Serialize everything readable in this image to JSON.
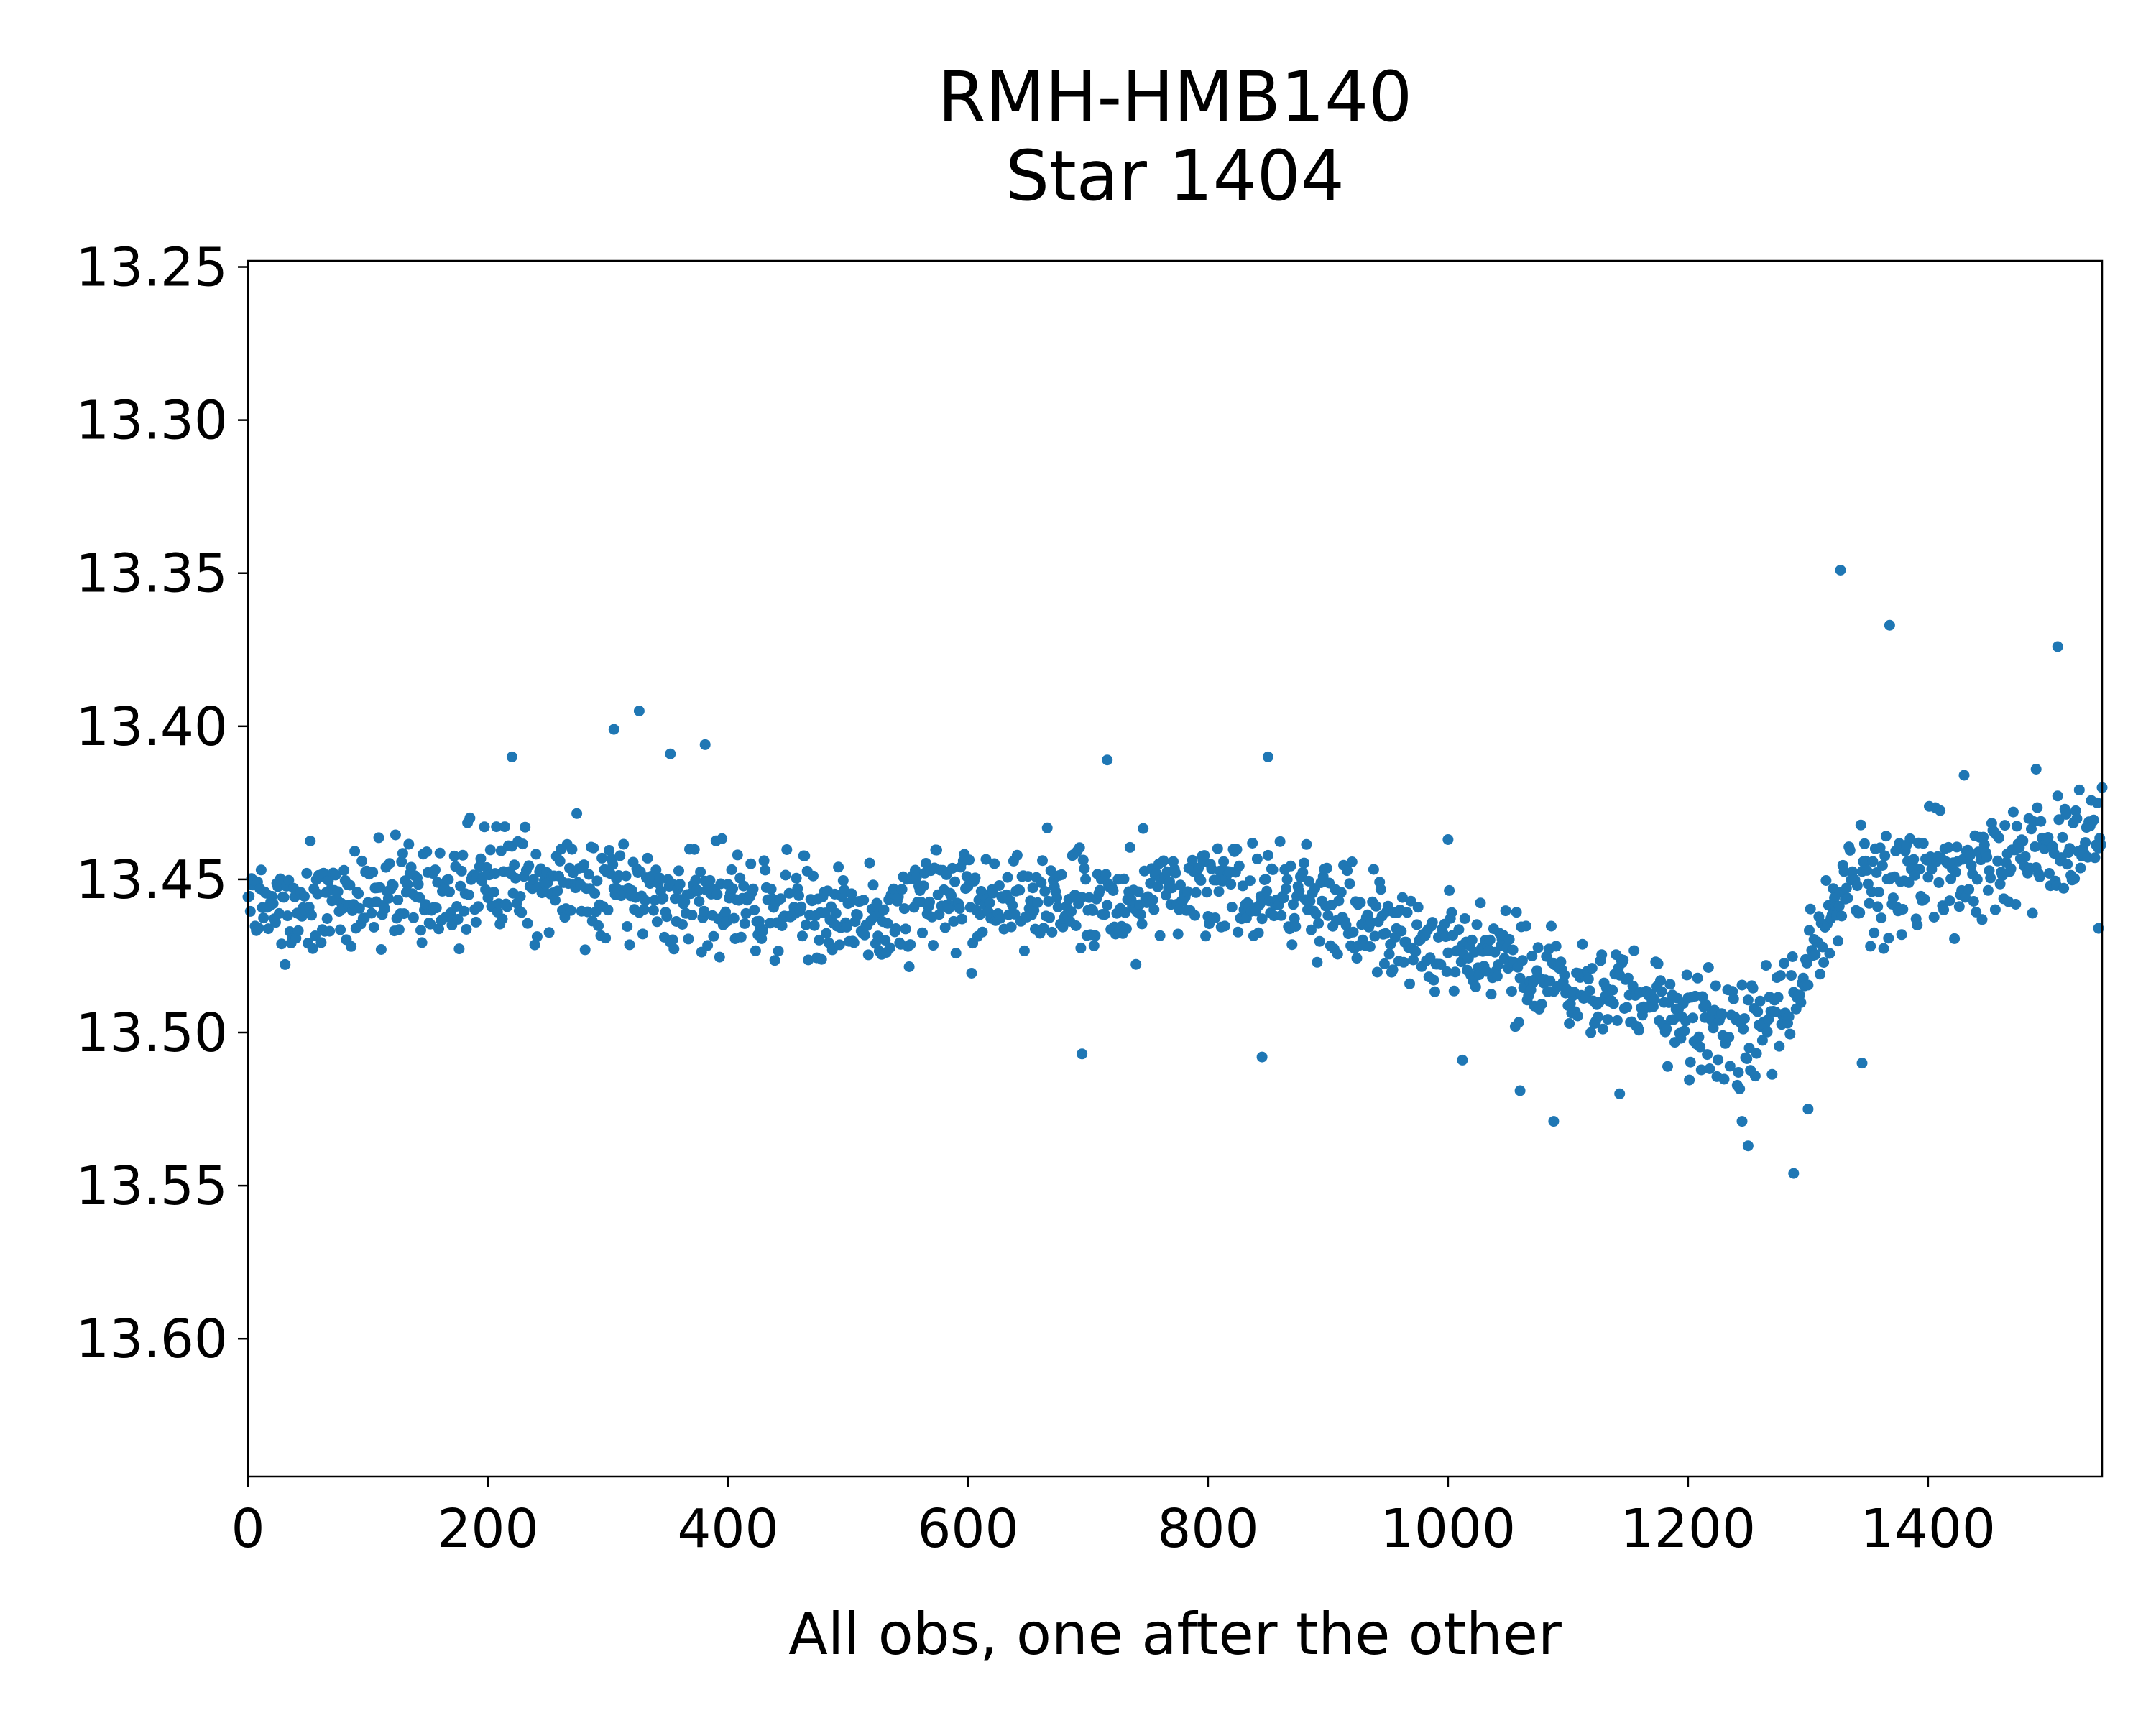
{
  "page": {
    "title_line1": "RMH-HMB140",
    "title_line2": "Star 1404"
  },
  "chart_data": {
    "type": "scatter",
    "title": "RMH-HMB140\nStar 1404",
    "xlabel": "All obs, one after the other",
    "ylabel": "",
    "xlim": [
      0,
      1545
    ],
    "ylim": [
      13.645,
      13.248
    ],
    "y_inverted": true,
    "x_ticks": [
      0,
      200,
      400,
      600,
      800,
      1000,
      1200,
      1400
    ],
    "x_tick_labels": [
      "0",
      "200",
      "400",
      "600",
      "800",
      "1000",
      "1200",
      "1400"
    ],
    "y_ticks": [
      13.25,
      13.3,
      13.35,
      13.4,
      13.45,
      13.5,
      13.55,
      13.6
    ],
    "y_tick_labels": [
      "13.25",
      "13.30",
      "13.35",
      "13.40",
      "13.45",
      "13.50",
      "13.55",
      "13.60"
    ],
    "grid": false,
    "legend": "none",
    "marker_color": "#1f77b4",
    "series": [
      {
        "n_points": 1545,
        "trend": {
          "x": [
            0,
            100,
            200,
            300,
            400,
            500,
            600,
            700,
            800,
            900,
            950,
            1000,
            1050,
            1100,
            1150,
            1200,
            1250,
            1290,
            1310,
            1330,
            1360,
            1400,
            1450,
            1500,
            1545
          ],
          "y": [
            13.458,
            13.457,
            13.452,
            13.452,
            13.458,
            13.462,
            13.456,
            13.458,
            13.452,
            13.458,
            13.466,
            13.47,
            13.474,
            13.486,
            13.488,
            13.496,
            13.5,
            13.486,
            13.47,
            13.455,
            13.452,
            13.447,
            13.448,
            13.44,
            13.434
          ]
        },
        "scatter_half_width": 0.018,
        "outliers": [
          {
            "x": 305,
            "y": 13.401
          },
          {
            "x": 326,
            "y": 13.395
          },
          {
            "x": 381,
            "y": 13.406
          },
          {
            "x": 220,
            "y": 13.41
          },
          {
            "x": 352,
            "y": 13.409
          },
          {
            "x": 716,
            "y": 13.411
          },
          {
            "x": 850,
            "y": 13.41
          },
          {
            "x": 695,
            "y": 13.507
          },
          {
            "x": 1088,
            "y": 13.529
          },
          {
            "x": 1060,
            "y": 13.519
          },
          {
            "x": 1245,
            "y": 13.529
          },
          {
            "x": 1250,
            "y": 13.537
          },
          {
            "x": 1288,
            "y": 13.546
          },
          {
            "x": 1300,
            "y": 13.525
          },
          {
            "x": 1143,
            "y": 13.52
          },
          {
            "x": 1327,
            "y": 13.349
          },
          {
            "x": 1368,
            "y": 13.367
          },
          {
            "x": 1508,
            "y": 13.374
          },
          {
            "x": 1345,
            "y": 13.51
          },
          {
            "x": 1430,
            "y": 13.416
          },
          {
            "x": 1490,
            "y": 13.414
          },
          {
            "x": 1545,
            "y": 13.42
          },
          {
            "x": 1542,
            "y": 13.466
          },
          {
            "x": 845,
            "y": 13.508
          },
          {
            "x": 1012,
            "y": 13.509
          },
          {
            "x": 1000,
            "y": 13.437
          }
        ]
      }
    ]
  }
}
